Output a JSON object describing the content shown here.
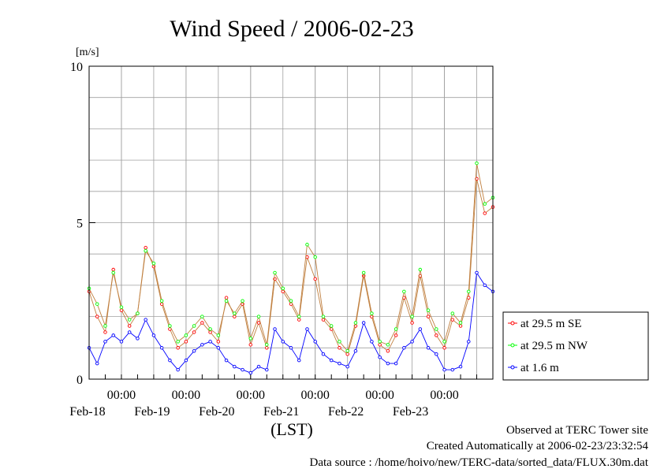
{
  "chart_data": {
    "type": "line",
    "title": "Wind Speed / 2006-02-23",
    "ylabel": "[m/s]",
    "xlabel": "(LST)",
    "ylim": [
      0,
      10
    ],
    "yticks": [
      "0",
      "5",
      "10"
    ],
    "xlim": [
      "2006-02-17 12:00",
      "2006-02-23 18:00"
    ],
    "xticks": [
      {
        "time": "00:00",
        "date": "Feb-18"
      },
      {
        "time": "00:00",
        "date": "Feb-19"
      },
      {
        "time": "00:00",
        "date": "Feb-20"
      },
      {
        "time": "00:00",
        "date": "Feb-21"
      },
      {
        "time": "00:00",
        "date": "Feb-22"
      },
      {
        "time": "00:00",
        "date": "Feb-23"
      }
    ],
    "grid": true,
    "legend_position": "right",
    "x": [
      "2006-02-17 12:00",
      "2006-02-17 15:00",
      "2006-02-17 18:00",
      "2006-02-17 21:00",
      "2006-02-18 00:00",
      "2006-02-18 03:00",
      "2006-02-18 06:00",
      "2006-02-18 09:00",
      "2006-02-18 12:00",
      "2006-02-18 15:00",
      "2006-02-18 18:00",
      "2006-02-18 21:00",
      "2006-02-19 00:00",
      "2006-02-19 03:00",
      "2006-02-19 06:00",
      "2006-02-19 09:00",
      "2006-02-19 12:00",
      "2006-02-19 15:00",
      "2006-02-19 18:00",
      "2006-02-19 21:00",
      "2006-02-20 00:00",
      "2006-02-20 03:00",
      "2006-02-20 06:00",
      "2006-02-20 09:00",
      "2006-02-20 12:00",
      "2006-02-20 15:00",
      "2006-02-20 18:00",
      "2006-02-20 21:00",
      "2006-02-21 00:00",
      "2006-02-21 03:00",
      "2006-02-21 06:00",
      "2006-02-21 09:00",
      "2006-02-21 12:00",
      "2006-02-21 15:00",
      "2006-02-21 18:00",
      "2006-02-21 21:00",
      "2006-02-22 00:00",
      "2006-02-22 03:00",
      "2006-02-22 06:00",
      "2006-02-22 09:00",
      "2006-02-22 12:00",
      "2006-02-22 15:00",
      "2006-02-22 18:00",
      "2006-02-22 21:00",
      "2006-02-23 00:00",
      "2006-02-23 03:00",
      "2006-02-23 06:00",
      "2006-02-23 09:00",
      "2006-02-23 12:00",
      "2006-02-23 15:00",
      "2006-02-23 18:00"
    ],
    "series": [
      {
        "name": "at 29.5 m SE",
        "color": "#ff0000",
        "values": [
          2.8,
          2.0,
          1.5,
          3.5,
          2.2,
          1.7,
          2.1,
          4.2,
          3.6,
          2.4,
          1.6,
          1.0,
          1.2,
          1.5,
          1.8,
          1.5,
          1.2,
          2.6,
          2.0,
          2.4,
          1.1,
          1.8,
          1.0,
          3.2,
          2.8,
          2.4,
          1.9,
          3.9,
          3.2,
          1.9,
          1.6,
          1.0,
          0.8,
          1.7,
          3.3,
          2.0,
          1.1,
          0.9,
          1.4,
          2.6,
          1.8,
          3.3,
          2.0,
          1.4,
          1.0,
          1.9,
          1.7,
          2.6,
          6.4,
          5.3,
          5.5
        ]
      },
      {
        "name": "at 29.5 m NW",
        "color": "#00ff00",
        "values": [
          2.9,
          2.4,
          1.7,
          3.4,
          2.3,
          1.9,
          2.1,
          4.1,
          3.7,
          2.5,
          1.7,
          1.2,
          1.4,
          1.7,
          2.0,
          1.6,
          1.4,
          2.5,
          2.1,
          2.5,
          1.3,
          2.0,
          1.1,
          3.4,
          2.9,
          2.5,
          2.0,
          4.3,
          3.9,
          2.0,
          1.7,
          1.2,
          0.9,
          1.8,
          3.4,
          2.1,
          1.2,
          1.1,
          1.6,
          2.8,
          2.0,
          3.5,
          2.2,
          1.6,
          1.2,
          2.1,
          1.8,
          2.8,
          6.9,
          5.6,
          5.8
        ]
      },
      {
        "name": "at 1.6 m",
        "color": "#0000ff",
        "values": [
          1.0,
          0.5,
          1.2,
          1.4,
          1.2,
          1.5,
          1.3,
          1.9,
          1.4,
          1.0,
          0.6,
          0.3,
          0.6,
          0.9,
          1.1,
          1.2,
          1.0,
          0.6,
          0.4,
          0.3,
          0.2,
          0.4,
          0.3,
          1.6,
          1.2,
          1.0,
          0.6,
          1.6,
          1.2,
          0.8,
          0.6,
          0.5,
          0.4,
          0.9,
          1.8,
          1.2,
          0.7,
          0.5,
          0.5,
          1.0,
          1.2,
          1.6,
          1.0,
          0.8,
          0.3,
          0.3,
          0.4,
          1.2,
          3.4,
          3.0,
          2.8
        ]
      }
    ]
  },
  "footer": {
    "site": "Observed at TERC Tower site",
    "created": "Created Automatically at 2006-02-23/23:32:54",
    "source": "Data source : /home/hoivo/new/TERC-data/sorted_data/FLUX.30m.dat"
  }
}
